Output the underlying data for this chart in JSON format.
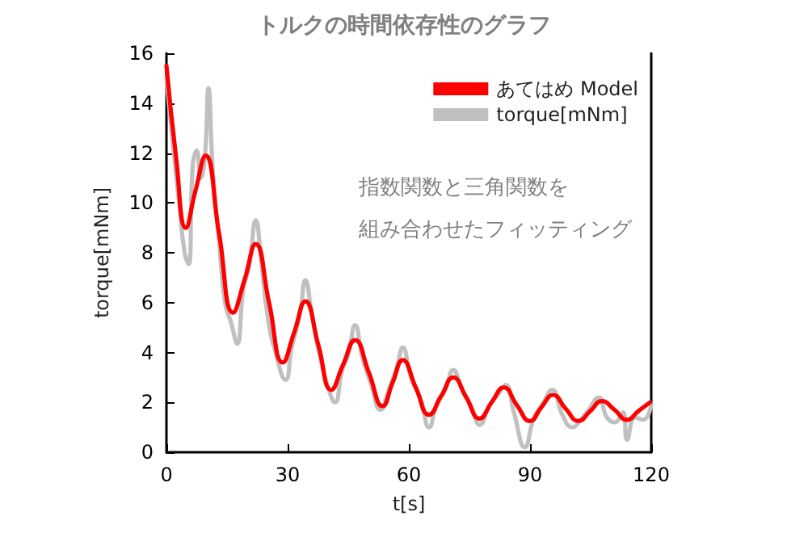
{
  "chart_data": {
    "type": "line",
    "title": "トルクの時間依存性のグラフ",
    "xlabel": "t[s]",
    "ylabel": "torque[mNm]",
    "annotations": [
      "指数関数と三角関数を",
      "組み合わせたフィッティング"
    ],
    "xlim": [
      0,
      120
    ],
    "xticks": [
      0,
      30,
      60,
      90,
      120
    ],
    "ylim": [
      0,
      16
    ],
    "yticks": [
      0,
      2,
      4,
      6,
      8,
      10,
      12,
      14,
      16
    ],
    "grid": false,
    "legend": "top right",
    "marker": "none",
    "line_style": "solid",
    "series": [
      {
        "name": "あてはめ Model",
        "color": "#ff0000",
        "x": [
          0,
          2.4,
          4.8,
          7.2,
          9.7,
          13,
          16.5,
          19.3,
          22.1,
          25.4,
          28.8,
          31.6,
          34.4,
          37.6,
          40.8,
          43.7,
          46.7,
          50.1,
          53.5,
          56,
          58.5,
          61.7,
          65,
          68,
          71,
          74.2,
          77.5,
          80.5,
          83.5,
          86.7,
          90,
          92.8,
          95.7,
          98.8,
          102,
          104.9,
          107.8,
          110.9,
          114,
          116.8,
          119.7
        ],
        "values": [
          15.5,
          11.8,
          9.0,
          10.5,
          11.9,
          8.8,
          5.6,
          6.9,
          8.35,
          6.0,
          3.6,
          4.8,
          6.05,
          4.3,
          2.5,
          3.5,
          4.5,
          3.2,
          1.85,
          2.8,
          3.7,
          2.6,
          1.5,
          2.25,
          3.0,
          2.2,
          1.35,
          2.0,
          2.6,
          1.9,
          1.25,
          1.8,
          2.3,
          1.75,
          1.25,
          1.65,
          2.05,
          1.7,
          1.3,
          1.65,
          2.0
        ]
      },
      {
        "name": "torque[mNm]",
        "color": "#c0c0c0",
        "x": [
          0,
          1.5,
          3,
          4.5,
          5.5,
          6.5,
          7.5,
          8.5,
          9.5,
          10.4,
          11.5,
          13,
          14.5,
          16,
          17.5,
          19,
          20.5,
          22.1,
          23.5,
          25,
          27,
          29.5,
          31,
          33,
          34.4,
          36,
          38,
          40,
          41.7,
          43.5,
          45,
          46.7,
          48.5,
          50.5,
          53,
          55,
          57,
          58.5,
          60.5,
          63,
          65,
          67,
          69,
          71,
          73,
          75.5,
          77.5,
          80,
          82,
          84,
          86,
          88.7,
          91,
          93,
          95.5,
          98,
          100.5,
          102.5,
          104.5,
          107,
          109,
          111,
          113,
          114,
          116,
          118,
          120
        ],
        "values": [
          15.0,
          12.5,
          10.2,
          8.0,
          7.55,
          11.5,
          12.1,
          11.0,
          11.8,
          14.6,
          11.2,
          8.5,
          6.0,
          5.2,
          4.35,
          6.5,
          7.5,
          9.3,
          7.6,
          5.5,
          4.0,
          2.9,
          4.2,
          5.5,
          6.9,
          5.5,
          3.8,
          2.6,
          2.0,
          3.3,
          3.9,
          5.1,
          3.8,
          2.8,
          1.7,
          2.5,
          3.4,
          4.2,
          3.0,
          2.1,
          1.0,
          2.0,
          2.5,
          3.3,
          2.6,
          1.8,
          1.1,
          1.9,
          2.3,
          2.7,
          1.6,
          0.2,
          1.4,
          1.9,
          2.5,
          1.5,
          1.0,
          1.3,
          1.7,
          2.2,
          1.4,
          1.2,
          1.6,
          0.5,
          1.4,
          1.3,
          1.9
        ]
      }
    ]
  }
}
